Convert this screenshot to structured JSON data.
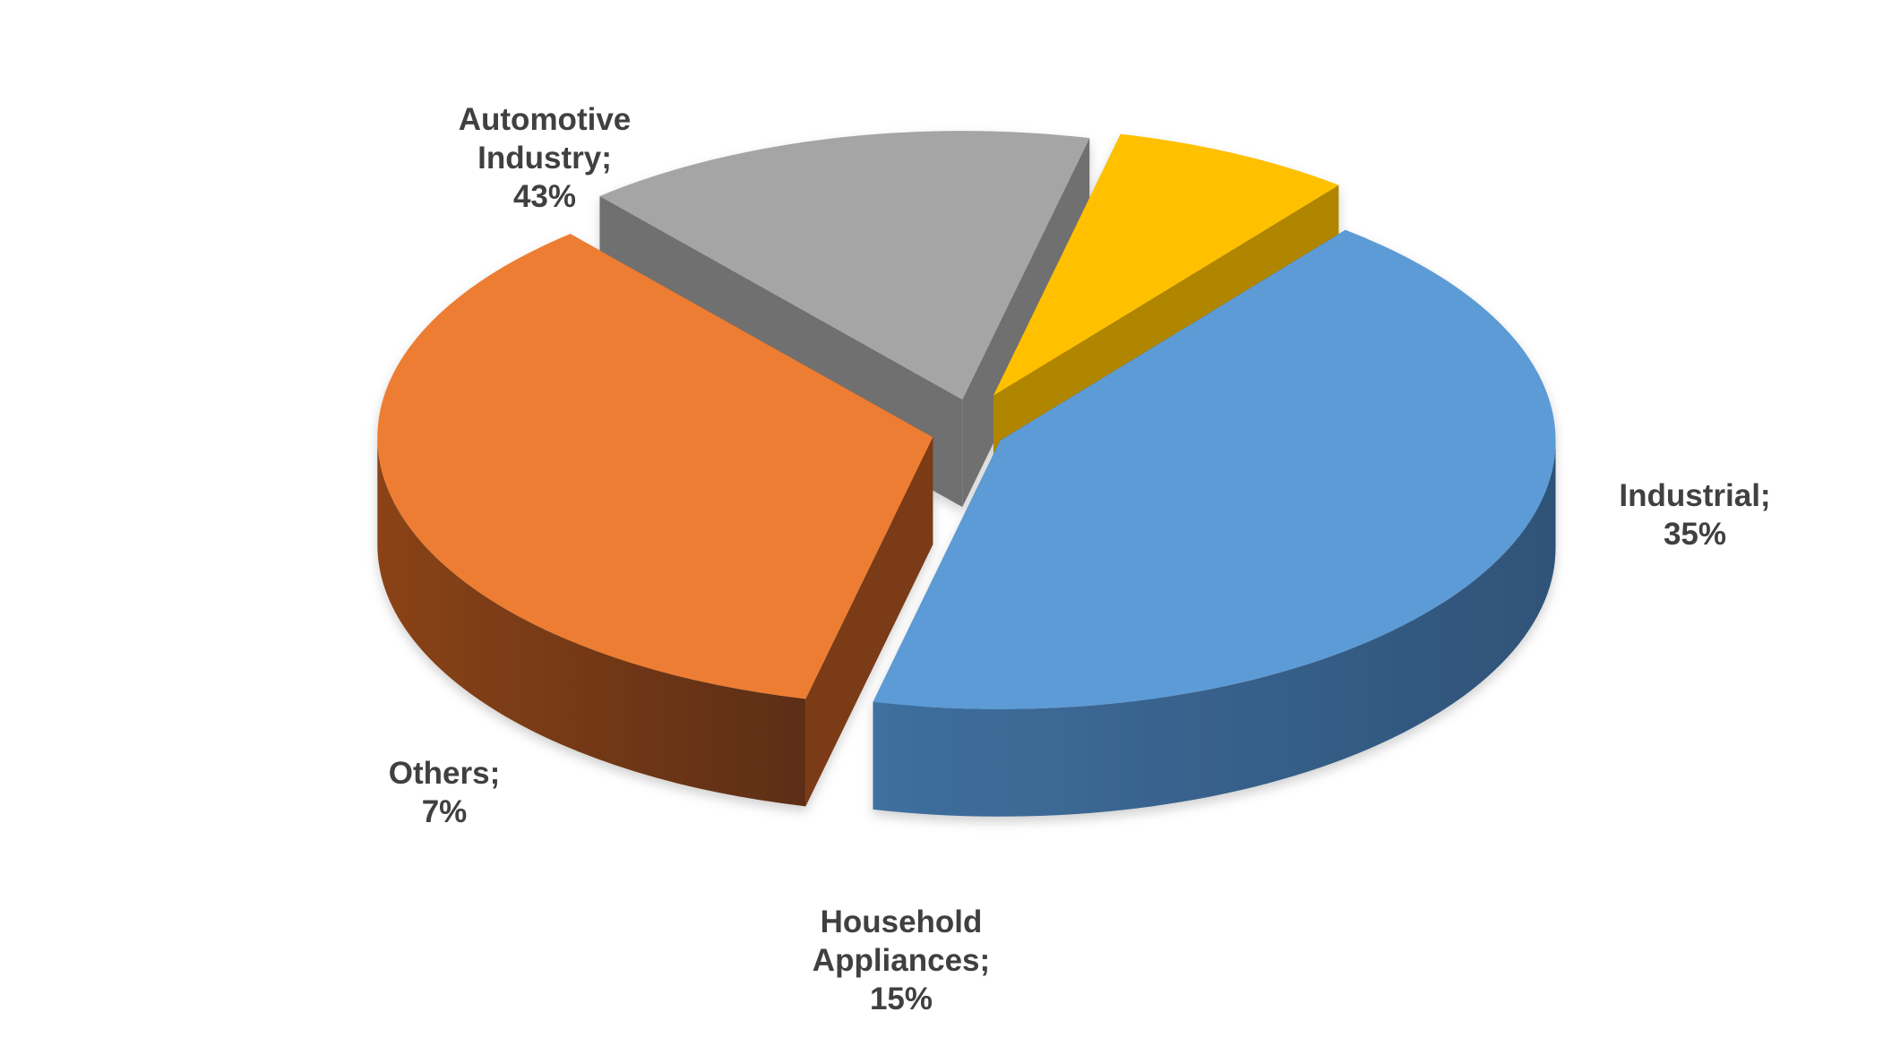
{
  "chart_data": {
    "type": "pie",
    "style": "3d-exploded",
    "title": "",
    "slices": [
      {
        "key": "automotive",
        "label_lines": [
          "Automotive",
          "Industry;",
          "43%"
        ],
        "name": "Automotive Industry",
        "value": 43,
        "color": "#5B9BD5"
      },
      {
        "key": "industrial",
        "label_lines": [
          "Industrial;",
          "35%"
        ],
        "name": "Industrial",
        "value": 35,
        "color": "#ED7D31"
      },
      {
        "key": "household",
        "label_lines": [
          "Household",
          "Appliances;",
          "15%"
        ],
        "name": "Household Appliances",
        "value": 15,
        "color": "#A5A5A5"
      },
      {
        "key": "others",
        "label_lines": [
          "Others;",
          "7%"
        ],
        "name": "Others",
        "value": 7,
        "color": "#FFC000"
      }
    ],
    "legend": "none"
  }
}
